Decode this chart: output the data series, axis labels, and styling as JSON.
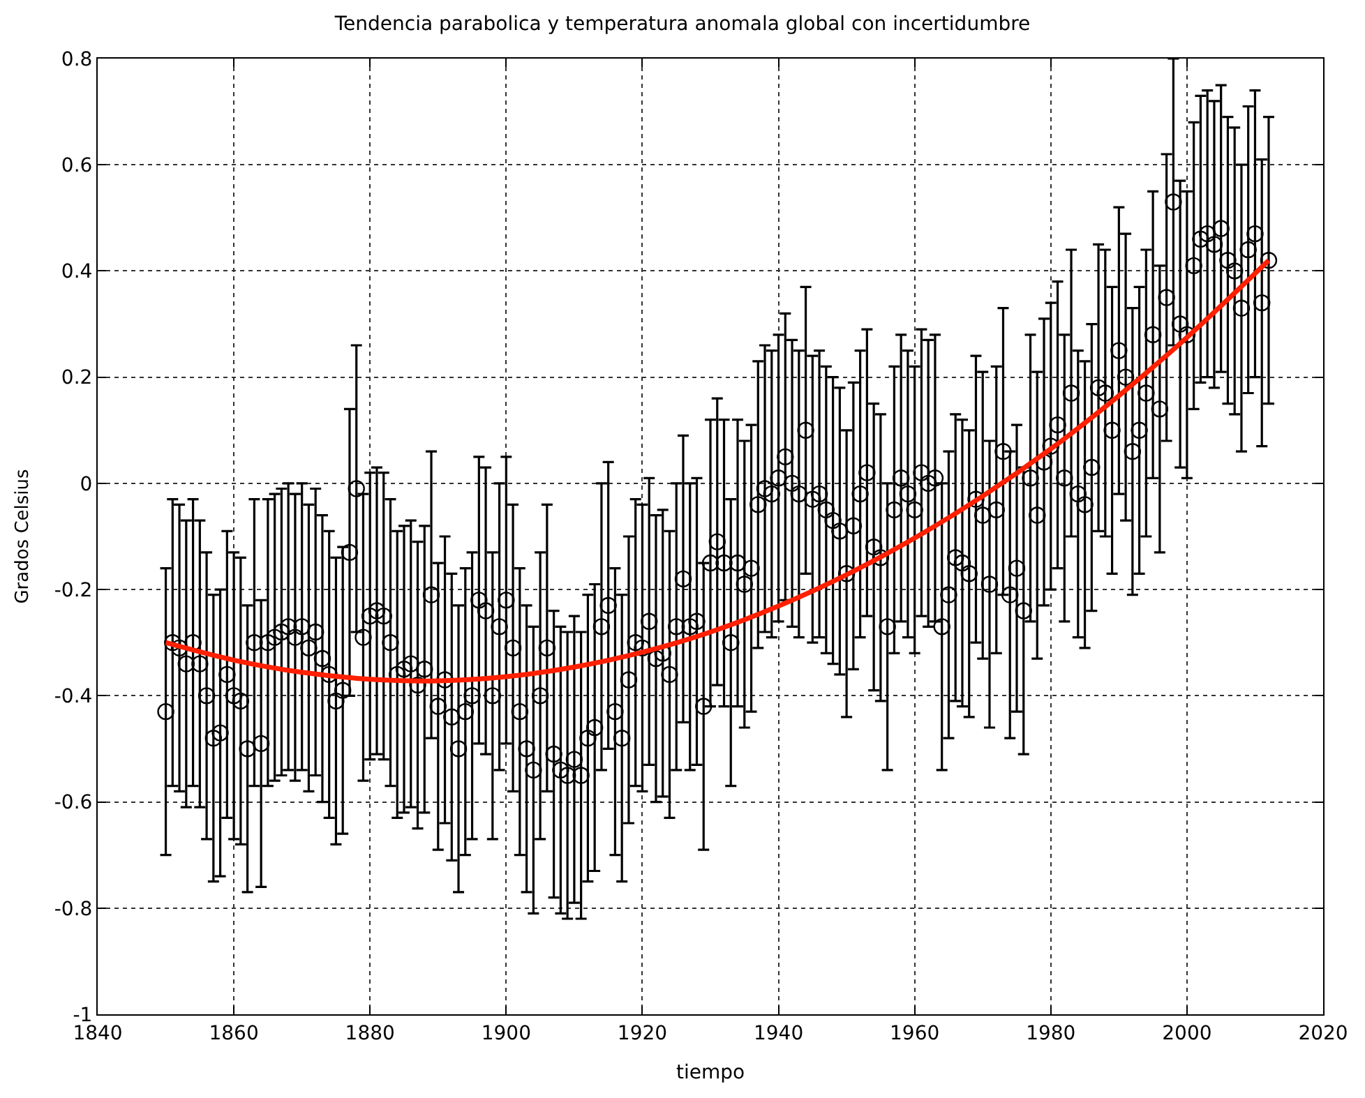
{
  "chart_data": {
    "type": "scatter",
    "title": "Tendencia parabolica y temperatura anomala global con incertidumbre",
    "xlabel": "tiempo",
    "ylabel": "Grados Celsius",
    "xlim": [
      1840,
      2020
    ],
    "xticks": [
      1840,
      1860,
      1880,
      1900,
      1920,
      1940,
      1960,
      1980,
      2000,
      2020
    ],
    "ylim": [
      -1,
      0.8
    ],
    "yticks": [
      -1,
      -0.8,
      -0.6,
      -0.4,
      -0.2,
      0,
      0.2,
      0.4,
      0.6,
      0.8
    ],
    "grid": true,
    "legend": false,
    "series": [
      {
        "marker": "circle",
        "color": "#000000",
        "x": [
          1850,
          1851,
          1852,
          1853,
          1854,
          1855,
          1856,
          1857,
          1858,
          1859,
          1860,
          1861,
          1862,
          1863,
          1864,
          1865,
          1866,
          1867,
          1868,
          1869,
          1870,
          1871,
          1872,
          1873,
          1874,
          1875,
          1876,
          1877,
          1878,
          1879,
          1880,
          1881,
          1882,
          1883,
          1884,
          1885,
          1886,
          1887,
          1888,
          1889,
          1890,
          1891,
          1892,
          1893,
          1894,
          1895,
          1896,
          1897,
          1898,
          1899,
          1900,
          1901,
          1902,
          1903,
          1904,
          1905,
          1906,
          1907,
          1908,
          1909,
          1910,
          1911,
          1912,
          1913,
          1914,
          1915,
          1916,
          1917,
          1918,
          1919,
          1920,
          1921,
          1922,
          1923,
          1924,
          1925,
          1926,
          1927,
          1928,
          1929,
          1930,
          1931,
          1932,
          1933,
          1934,
          1935,
          1936,
          1937,
          1938,
          1939,
          1940,
          1941,
          1942,
          1943,
          1944,
          1945,
          1946,
          1947,
          1948,
          1949,
          1950,
          1951,
          1952,
          1953,
          1954,
          1955,
          1956,
          1957,
          1958,
          1959,
          1960,
          1961,
          1962,
          1963,
          1964,
          1965,
          1966,
          1967,
          1968,
          1969,
          1970,
          1971,
          1972,
          1973,
          1974,
          1975,
          1976,
          1977,
          1978,
          1979,
          1980,
          1981,
          1982,
          1983,
          1984,
          1985,
          1986,
          1987,
          1988,
          1989,
          1990,
          1991,
          1992,
          1993,
          1994,
          1995,
          1996,
          1997,
          1998,
          1999,
          2000,
          2001,
          2002,
          2003,
          2004,
          2005,
          2006,
          2007,
          2008,
          2009,
          2010,
          2011,
          2012
        ],
        "values": [
          -0.43,
          -0.3,
          -0.31,
          -0.34,
          -0.3,
          -0.34,
          -0.4,
          -0.48,
          -0.47,
          -0.36,
          -0.4,
          -0.41,
          -0.5,
          -0.3,
          -0.49,
          -0.3,
          -0.29,
          -0.28,
          -0.27,
          -0.29,
          -0.27,
          -0.31,
          -0.28,
          -0.33,
          -0.36,
          -0.41,
          -0.39,
          -0.13,
          -0.01,
          -0.29,
          -0.25,
          -0.24,
          -0.25,
          -0.3,
          -0.36,
          -0.35,
          -0.34,
          -0.38,
          -0.35,
          -0.21,
          -0.42,
          -0.37,
          -0.44,
          -0.5,
          -0.43,
          -0.4,
          -0.22,
          -0.24,
          -0.4,
          -0.27,
          -0.22,
          -0.31,
          -0.43,
          -0.5,
          -0.54,
          -0.4,
          -0.31,
          -0.51,
          -0.54,
          -0.55,
          -0.52,
          -0.55,
          -0.48,
          -0.46,
          -0.27,
          -0.23,
          -0.43,
          -0.48,
          -0.37,
          -0.3,
          -0.31,
          -0.26,
          -0.33,
          -0.32,
          -0.36,
          -0.27,
          -0.18,
          -0.27,
          -0.26,
          -0.42,
          -0.15,
          -0.11,
          -0.15,
          -0.3,
          -0.15,
          -0.19,
          -0.16,
          -0.04,
          -0.01,
          -0.02,
          0.01,
          0.05,
          0.0,
          -0.02,
          0.1,
          -0.03,
          -0.02,
          -0.05,
          -0.07,
          -0.09,
          -0.17,
          -0.08,
          -0.02,
          0.02,
          -0.12,
          -0.14,
          -0.27,
          -0.05,
          0.01,
          -0.02,
          -0.05,
          0.02,
          0.0,
          0.01,
          -0.27,
          -0.21,
          -0.14,
          -0.15,
          -0.17,
          -0.03,
          -0.06,
          -0.19,
          -0.05,
          0.06,
          -0.21,
          -0.16,
          -0.24,
          0.01,
          -0.06,
          0.04,
          0.07,
          0.11,
          0.01,
          0.17,
          -0.02,
          -0.04,
          0.03,
          0.18,
          0.17,
          0.1,
          0.25,
          0.2,
          0.06,
          0.1,
          0.17,
          0.28,
          0.14,
          0.35,
          0.53,
          0.3,
          0.28,
          0.41,
          0.46,
          0.47,
          0.45,
          0.48,
          0.42,
          0.4,
          0.33,
          0.44,
          0.47,
          0.34,
          0.42
        ],
        "errors": [
          0.27,
          0.27,
          0.27,
          0.27,
          0.27,
          0.27,
          0.27,
          0.27,
          0.27,
          0.27,
          0.27,
          0.27,
          0.27,
          0.27,
          0.27,
          0.27,
          0.27,
          0.27,
          0.27,
          0.27,
          0.27,
          0.27,
          0.27,
          0.27,
          0.27,
          0.27,
          0.27,
          0.27,
          0.27,
          0.27,
          0.27,
          0.27,
          0.27,
          0.27,
          0.27,
          0.27,
          0.27,
          0.27,
          0.27,
          0.27,
          0.27,
          0.27,
          0.27,
          0.27,
          0.27,
          0.27,
          0.27,
          0.27,
          0.27,
          0.27,
          0.27,
          0.27,
          0.27,
          0.27,
          0.27,
          0.27,
          0.27,
          0.27,
          0.27,
          0.27,
          0.27,
          0.27,
          0.27,
          0.27,
          0.27,
          0.27,
          0.27,
          0.27,
          0.27,
          0.27,
          0.27,
          0.27,
          0.27,
          0.27,
          0.27,
          0.27,
          0.27,
          0.27,
          0.27,
          0.27,
          0.27,
          0.27,
          0.27,
          0.27,
          0.27,
          0.27,
          0.27,
          0.27,
          0.27,
          0.27,
          0.27,
          0.27,
          0.27,
          0.27,
          0.27,
          0.27,
          0.27,
          0.27,
          0.27,
          0.27,
          0.27,
          0.27,
          0.27,
          0.27,
          0.27,
          0.27,
          0.27,
          0.27,
          0.27,
          0.27,
          0.27,
          0.27,
          0.27,
          0.27,
          0.27,
          0.27,
          0.27,
          0.27,
          0.27,
          0.27,
          0.27,
          0.27,
          0.27,
          0.27,
          0.27,
          0.27,
          0.27,
          0.27,
          0.27,
          0.27,
          0.27,
          0.27,
          0.27,
          0.27,
          0.27,
          0.27,
          0.27,
          0.27,
          0.27,
          0.27,
          0.27,
          0.27,
          0.27,
          0.27,
          0.27,
          0.27,
          0.27,
          0.27,
          0.27,
          0.27,
          0.27,
          0.27,
          0.27,
          0.27,
          0.27,
          0.27,
          0.27,
          0.27,
          0.27,
          0.27,
          0.27,
          0.27,
          0.27
        ]
      },
      {
        "type": "line",
        "marker": "none",
        "line_style": "solid",
        "color": "#ff2000",
        "x": [
          1850,
          1860,
          1870,
          1880,
          1890,
          1900,
          1910,
          1920,
          1930,
          1940,
          1950,
          1960,
          1970,
          1980,
          1990,
          2000,
          2012
        ],
        "values": [
          -0.3,
          -0.333,
          -0.356,
          -0.369,
          -0.372,
          -0.364,
          -0.346,
          -0.318,
          -0.28,
          -0.231,
          -0.172,
          -0.103,
          -0.024,
          0.065,
          0.165,
          0.275,
          0.42
        ]
      }
    ]
  }
}
